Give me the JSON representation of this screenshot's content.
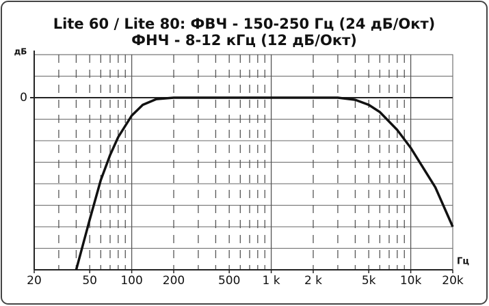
{
  "chart_data": {
    "type": "line",
    "title": "Lite 60 / Lite 80: ФВЧ - 150-250 Гц (24 дБ/Окт)",
    "subtitle": "ФНЧ - 8-12 кГц (12 дБ/Окт)",
    "y_label": "дБ",
    "x_label": "Гц",
    "x": [
      40,
      50,
      60,
      70,
      80,
      100,
      120,
      150,
      200,
      500,
      1000,
      2000,
      3000,
      4000,
      5000,
      6000,
      8000,
      10000,
      15000,
      20000
    ],
    "values": [
      -24,
      -17,
      -11.5,
      -8,
      -5.5,
      -2.5,
      -1,
      -0.2,
      0,
      0,
      0,
      0,
      0,
      -0.3,
      -1,
      -2,
      -4.5,
      -7,
      -12.5,
      -18
    ],
    "color": "#111111",
    "xlog": true,
    "xlim": [
      20,
      20000
    ],
    "xticks": [
      20,
      50,
      100,
      200,
      500,
      {
        "value": 1000,
        "label": "1 k"
      },
      {
        "value": 2000,
        "label": "2 k"
      },
      {
        "value": 5000,
        "label": "5k"
      },
      {
        "value": 10000,
        "label": "10k"
      },
      {
        "value": 20000,
        "label": "20k"
      }
    ],
    "xgrid_major": [
      100,
      1000,
      10000
    ],
    "xgrid_minor": [
      30,
      40,
      50,
      60,
      70,
      80,
      90,
      200,
      300,
      400,
      500,
      600,
      700,
      800,
      900,
      2000,
      3000,
      4000,
      5000,
      6000,
      7000,
      8000,
      9000
    ],
    "ylim": [
      -24,
      6
    ],
    "yticks": [
      0
    ],
    "ygrid": [
      -21,
      -18,
      -15,
      -12,
      -9,
      -6,
      -3,
      0,
      3
    ],
    "grid": true
  }
}
